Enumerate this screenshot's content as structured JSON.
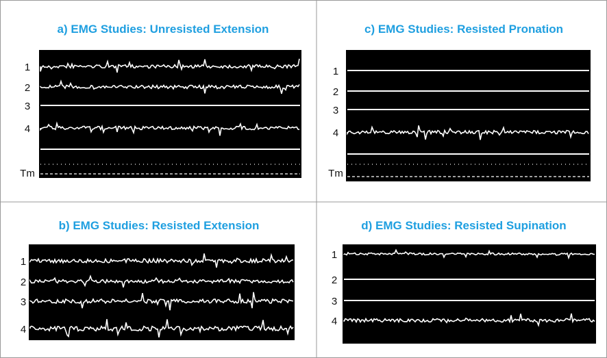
{
  "panels": [
    {
      "title": "a) EMG Studies: Unresisted Extension",
      "channels": [
        "1",
        "2",
        "3",
        "4",
        "Tm"
      ]
    },
    {
      "title": "c) EMG Studies: Resisted Pronation",
      "channels": [
        "1",
        "2",
        "3",
        "4",
        "Tm"
      ]
    },
    {
      "title": "b) EMG Studies: Resisted Extension",
      "channels": [
        "1",
        "2",
        "3",
        "4"
      ]
    },
    {
      "title": "d) EMG Studies: Resisted Supination",
      "channels": [
        "1",
        "2",
        "3",
        "4"
      ]
    }
  ]
}
